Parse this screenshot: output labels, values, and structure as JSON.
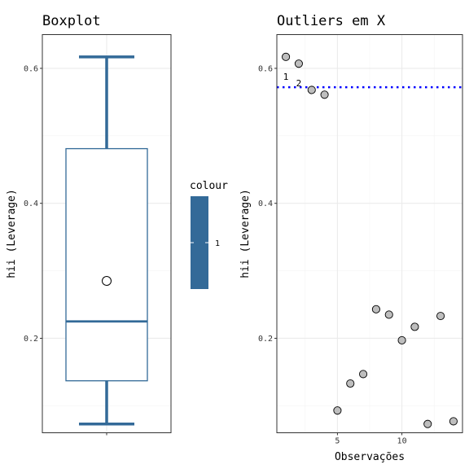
{
  "chart_data": [
    {
      "type": "boxplot",
      "title": "Boxplot",
      "xlabel": "",
      "ylabel": "hii (Leverage)",
      "ylim": [
        0.06,
        0.65
      ],
      "yticks": [
        0.2,
        0.4,
        0.6
      ],
      "ytick_labels": [
        "0.2",
        "0.4",
        "0.6"
      ],
      "grid": true,
      "color": "#336A98",
      "box": {
        "whisker_low": 0.073,
        "q1": 0.137,
        "median": 0.225,
        "q3": 0.481,
        "whisker_high": 0.617,
        "mean": 0.285
      }
    },
    {
      "type": "scatter",
      "title": "Outliers em X",
      "xlabel": "Observações",
      "ylabel": "hii (Leverage)",
      "xlim": [
        0.3,
        14.7
      ],
      "ylim": [
        0.06,
        0.65
      ],
      "xticks": [
        5,
        10
      ],
      "xtick_labels": [
        "5",
        "10"
      ],
      "yticks": [
        0.2,
        0.4,
        0.6
      ],
      "ytick_labels": [
        "0.2",
        "0.4",
        "0.6"
      ],
      "grid": true,
      "threshold": {
        "y": 0.572,
        "color": "#0000FF",
        "style": "dotted"
      },
      "points": [
        {
          "x": 1,
          "y": 0.617
        },
        {
          "x": 2,
          "y": 0.607
        },
        {
          "x": 3,
          "y": 0.568
        },
        {
          "x": 4,
          "y": 0.561
        },
        {
          "x": 5,
          "y": 0.093
        },
        {
          "x": 6,
          "y": 0.133
        },
        {
          "x": 7,
          "y": 0.147
        },
        {
          "x": 8,
          "y": 0.243
        },
        {
          "x": 9,
          "y": 0.235
        },
        {
          "x": 10,
          "y": 0.197
        },
        {
          "x": 11,
          "y": 0.217
        },
        {
          "x": 12,
          "y": 0.073
        },
        {
          "x": 13,
          "y": 0.233
        },
        {
          "x": 14,
          "y": 0.077
        }
      ],
      "point_labels": [
        {
          "x": 1,
          "y": 0.617,
          "text": "1"
        },
        {
          "x": 2,
          "y": 0.607,
          "text": "2"
        }
      ],
      "point_fill": "#BEBEBE"
    }
  ],
  "legend": {
    "title": "colour",
    "label": "1",
    "color": "#336A98",
    "placement": "between-panels"
  }
}
